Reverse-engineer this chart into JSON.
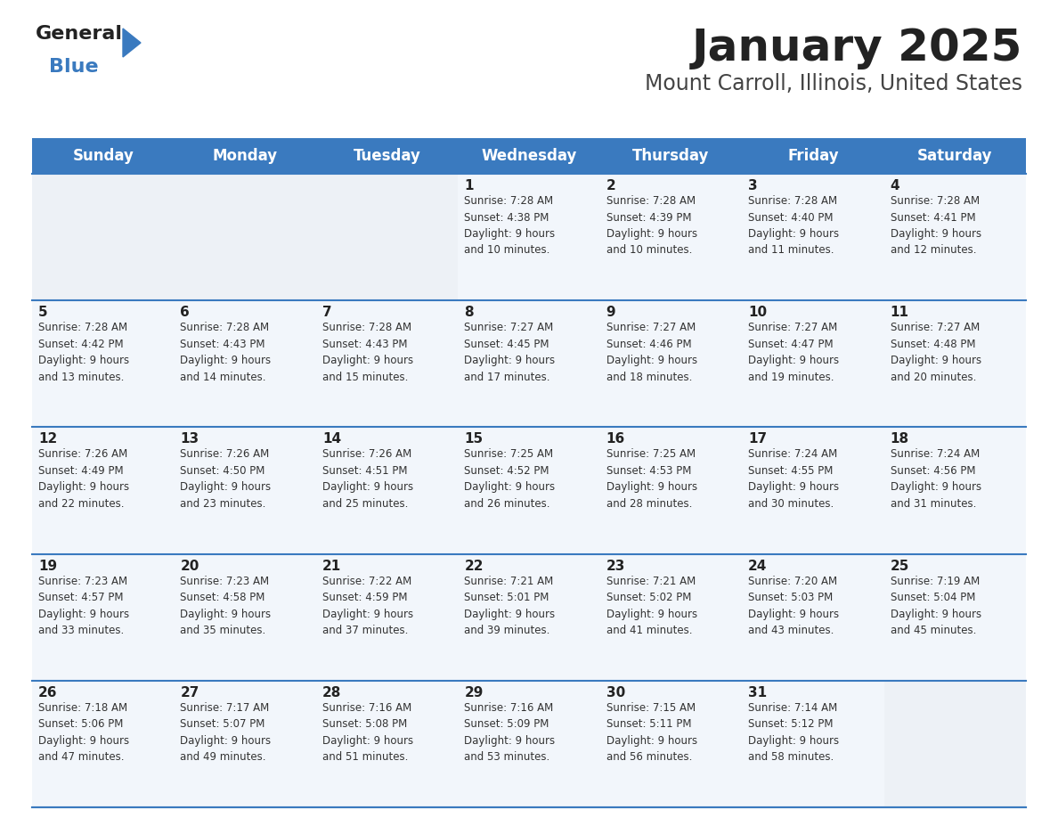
{
  "title": "January 2025",
  "subtitle": "Mount Carroll, Illinois, United States",
  "days_of_week": [
    "Sunday",
    "Monday",
    "Tuesday",
    "Wednesday",
    "Thursday",
    "Friday",
    "Saturday"
  ],
  "header_bg_color": "#3a7abf",
  "header_text_color": "#ffffff",
  "cell_bg_color": "#f2f6fb",
  "cell_bg_empty": "#edf1f6",
  "border_color": "#3a7abf",
  "day_number_color": "#222222",
  "cell_text_color": "#333333",
  "title_color": "#222222",
  "subtitle_color": "#444444",
  "weeks": [
    [
      {
        "day": null,
        "info": null
      },
      {
        "day": null,
        "info": null
      },
      {
        "day": null,
        "info": null
      },
      {
        "day": 1,
        "info": "Sunrise: 7:28 AM\nSunset: 4:38 PM\nDaylight: 9 hours\nand 10 minutes."
      },
      {
        "day": 2,
        "info": "Sunrise: 7:28 AM\nSunset: 4:39 PM\nDaylight: 9 hours\nand 10 minutes."
      },
      {
        "day": 3,
        "info": "Sunrise: 7:28 AM\nSunset: 4:40 PM\nDaylight: 9 hours\nand 11 minutes."
      },
      {
        "day": 4,
        "info": "Sunrise: 7:28 AM\nSunset: 4:41 PM\nDaylight: 9 hours\nand 12 minutes."
      }
    ],
    [
      {
        "day": 5,
        "info": "Sunrise: 7:28 AM\nSunset: 4:42 PM\nDaylight: 9 hours\nand 13 minutes."
      },
      {
        "day": 6,
        "info": "Sunrise: 7:28 AM\nSunset: 4:43 PM\nDaylight: 9 hours\nand 14 minutes."
      },
      {
        "day": 7,
        "info": "Sunrise: 7:28 AM\nSunset: 4:43 PM\nDaylight: 9 hours\nand 15 minutes."
      },
      {
        "day": 8,
        "info": "Sunrise: 7:27 AM\nSunset: 4:45 PM\nDaylight: 9 hours\nand 17 minutes."
      },
      {
        "day": 9,
        "info": "Sunrise: 7:27 AM\nSunset: 4:46 PM\nDaylight: 9 hours\nand 18 minutes."
      },
      {
        "day": 10,
        "info": "Sunrise: 7:27 AM\nSunset: 4:47 PM\nDaylight: 9 hours\nand 19 minutes."
      },
      {
        "day": 11,
        "info": "Sunrise: 7:27 AM\nSunset: 4:48 PM\nDaylight: 9 hours\nand 20 minutes."
      }
    ],
    [
      {
        "day": 12,
        "info": "Sunrise: 7:26 AM\nSunset: 4:49 PM\nDaylight: 9 hours\nand 22 minutes."
      },
      {
        "day": 13,
        "info": "Sunrise: 7:26 AM\nSunset: 4:50 PM\nDaylight: 9 hours\nand 23 minutes."
      },
      {
        "day": 14,
        "info": "Sunrise: 7:26 AM\nSunset: 4:51 PM\nDaylight: 9 hours\nand 25 minutes."
      },
      {
        "day": 15,
        "info": "Sunrise: 7:25 AM\nSunset: 4:52 PM\nDaylight: 9 hours\nand 26 minutes."
      },
      {
        "day": 16,
        "info": "Sunrise: 7:25 AM\nSunset: 4:53 PM\nDaylight: 9 hours\nand 28 minutes."
      },
      {
        "day": 17,
        "info": "Sunrise: 7:24 AM\nSunset: 4:55 PM\nDaylight: 9 hours\nand 30 minutes."
      },
      {
        "day": 18,
        "info": "Sunrise: 7:24 AM\nSunset: 4:56 PM\nDaylight: 9 hours\nand 31 minutes."
      }
    ],
    [
      {
        "day": 19,
        "info": "Sunrise: 7:23 AM\nSunset: 4:57 PM\nDaylight: 9 hours\nand 33 minutes."
      },
      {
        "day": 20,
        "info": "Sunrise: 7:23 AM\nSunset: 4:58 PM\nDaylight: 9 hours\nand 35 minutes."
      },
      {
        "day": 21,
        "info": "Sunrise: 7:22 AM\nSunset: 4:59 PM\nDaylight: 9 hours\nand 37 minutes."
      },
      {
        "day": 22,
        "info": "Sunrise: 7:21 AM\nSunset: 5:01 PM\nDaylight: 9 hours\nand 39 minutes."
      },
      {
        "day": 23,
        "info": "Sunrise: 7:21 AM\nSunset: 5:02 PM\nDaylight: 9 hours\nand 41 minutes."
      },
      {
        "day": 24,
        "info": "Sunrise: 7:20 AM\nSunset: 5:03 PM\nDaylight: 9 hours\nand 43 minutes."
      },
      {
        "day": 25,
        "info": "Sunrise: 7:19 AM\nSunset: 5:04 PM\nDaylight: 9 hours\nand 45 minutes."
      }
    ],
    [
      {
        "day": 26,
        "info": "Sunrise: 7:18 AM\nSunset: 5:06 PM\nDaylight: 9 hours\nand 47 minutes."
      },
      {
        "day": 27,
        "info": "Sunrise: 7:17 AM\nSunset: 5:07 PM\nDaylight: 9 hours\nand 49 minutes."
      },
      {
        "day": 28,
        "info": "Sunrise: 7:16 AM\nSunset: 5:08 PM\nDaylight: 9 hours\nand 51 minutes."
      },
      {
        "day": 29,
        "info": "Sunrise: 7:16 AM\nSunset: 5:09 PM\nDaylight: 9 hours\nand 53 minutes."
      },
      {
        "day": 30,
        "info": "Sunrise: 7:15 AM\nSunset: 5:11 PM\nDaylight: 9 hours\nand 56 minutes."
      },
      {
        "day": 31,
        "info": "Sunrise: 7:14 AM\nSunset: 5:12 PM\nDaylight: 9 hours\nand 58 minutes."
      },
      {
        "day": null,
        "info": null
      }
    ]
  ],
  "logo_general_color": "#222222",
  "logo_blue_color": "#3a7abf",
  "fig_width": 11.88,
  "fig_height": 9.18,
  "dpi": 100
}
